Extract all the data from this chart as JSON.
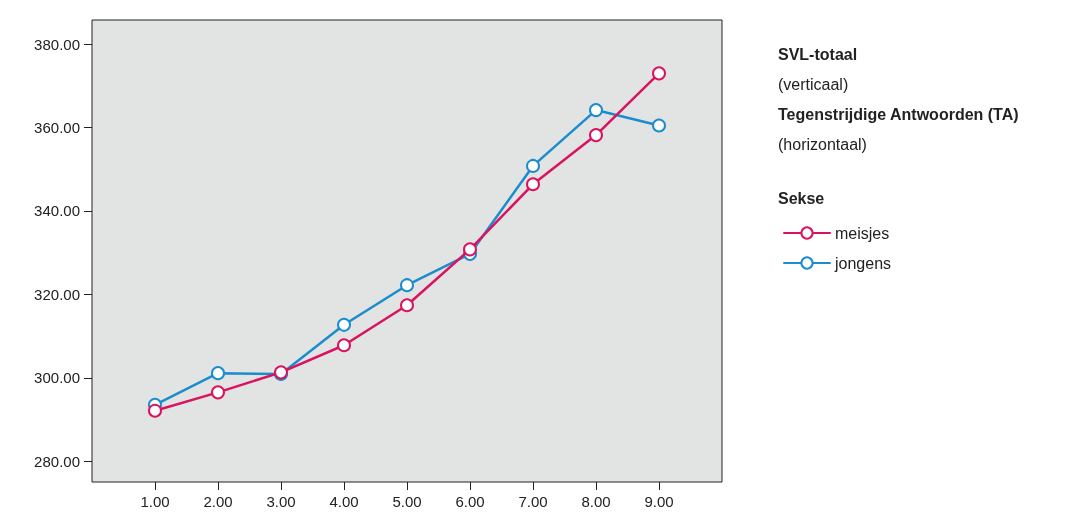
{
  "chart_data": {
    "type": "line",
    "x": [
      1,
      2,
      3,
      4,
      5,
      6,
      7,
      8,
      9
    ],
    "series": [
      {
        "name": "meisjes",
        "color": "#d9135f",
        "values": [
          292.1,
          296.5,
          301.3,
          307.8,
          317.4,
          330.8,
          346.4,
          358.2,
          373.0
        ]
      },
      {
        "name": "jongens",
        "color": "#1b8ccd",
        "values": [
          293.5,
          301.1,
          300.9,
          312.7,
          322.2,
          329.7,
          350.8,
          364.2,
          360.5
        ]
      }
    ],
    "ylabel": "SVL-totaal",
    "xlabel": "Tegenstrijdige Antwoorden (TA)",
    "annotations": [
      "(verticaal)",
      "(horizontaal)"
    ],
    "legend_title": "Sekse",
    "legend": "right",
    "marker": "circle",
    "line_style": "solid",
    "grid": false,
    "xlim": [
      0,
      10
    ],
    "xticks": [
      {
        "value": 1,
        "label": "1.00"
      },
      {
        "value": 2,
        "label": "2.00"
      },
      {
        "value": 3,
        "label": "3.00"
      },
      {
        "value": 4,
        "label": "4.00"
      },
      {
        "value": 5,
        "label": "5.00"
      },
      {
        "value": 6,
        "label": "6.00"
      },
      {
        "value": 7,
        "label": "7.00"
      },
      {
        "value": 8,
        "label": "8.00"
      },
      {
        "value": 9,
        "label": "9.00"
      }
    ],
    "ylim": [
      275,
      385.8
    ],
    "yticks": [
      {
        "value": 280,
        "label": "280.00"
      },
      {
        "value": 300,
        "label": "300.00"
      },
      {
        "value": 320,
        "label": "320.00"
      },
      {
        "value": 340,
        "label": "340.00"
      },
      {
        "value": 360,
        "label": "360.00"
      },
      {
        "value": 380,
        "label": "380.00"
      }
    ]
  }
}
